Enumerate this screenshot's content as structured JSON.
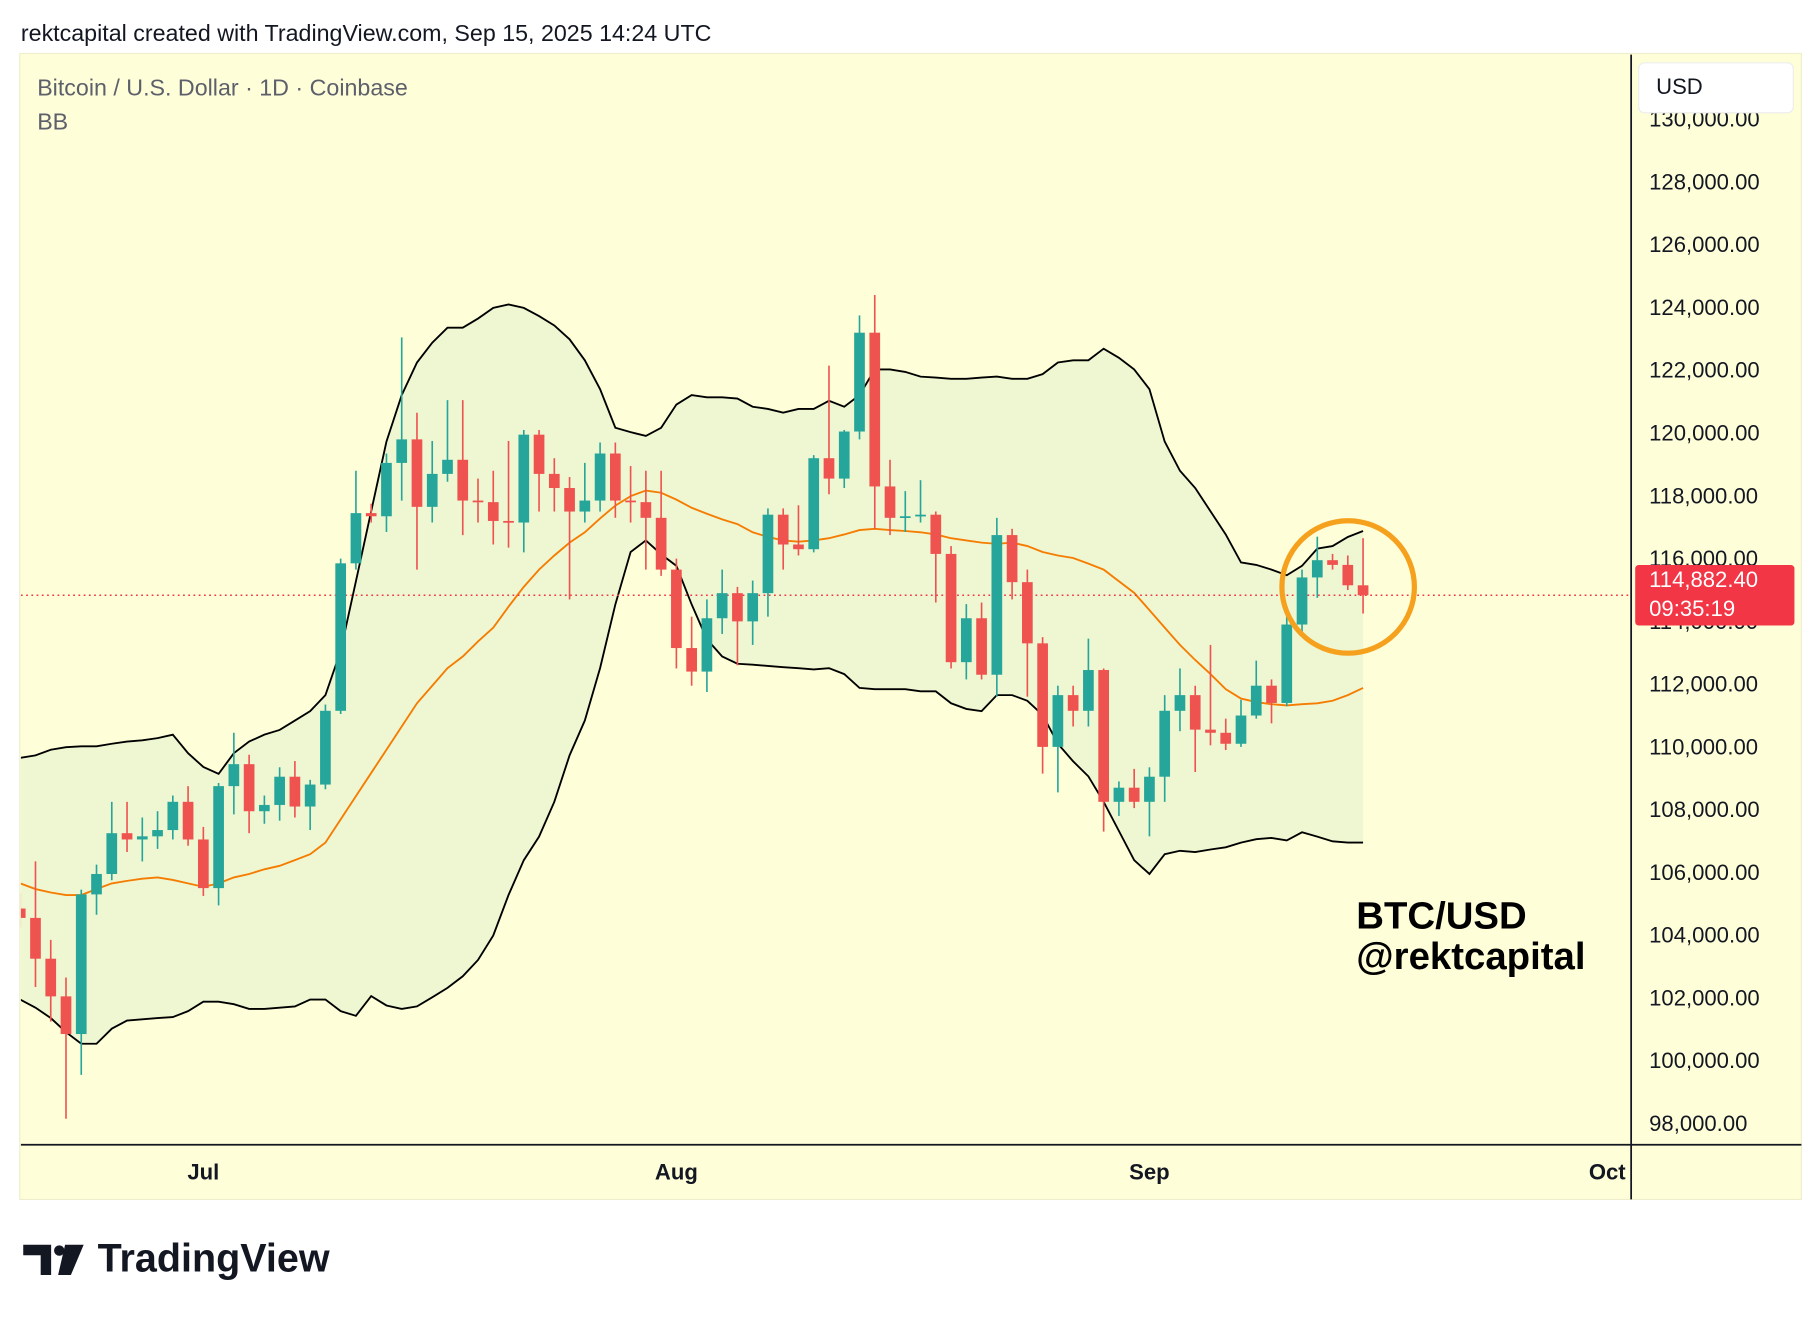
{
  "header": "rektcapital created with TradingView.com, Sep 15, 2025 14:24 UTC",
  "brand": "TradingView",
  "chart_data": {
    "type": "candlestick",
    "title": "Bitcoin / U.S. Dollar · 1D · Coinbase",
    "indicator": "BB",
    "currency": "USD",
    "annotations": [
      "BTC/USD",
      "@rektcapital"
    ],
    "categories": [
      null,
      null,
      null,
      null,
      null,
      null,
      null,
      null,
      null,
      null,
      null,
      null,
      "Jul",
      null,
      null,
      null,
      null,
      null,
      null,
      null,
      null,
      null,
      null,
      null,
      null,
      null,
      null,
      null,
      null,
      null,
      null,
      null,
      null,
      null,
      null,
      null,
      null,
      null,
      null,
      null,
      null,
      null,
      null,
      "Aug",
      null,
      null,
      null,
      null,
      null,
      null,
      null,
      null,
      null,
      null,
      null,
      null,
      null,
      null,
      null,
      null,
      null,
      null,
      null,
      null,
      null,
      null,
      null,
      null,
      null,
      null,
      null,
      null,
      null,
      null,
      "Sep",
      null,
      null,
      null,
      null,
      null,
      null,
      null,
      null,
      null,
      null,
      null,
      null,
      null,
      null,
      null,
      null,
      null,
      null,
      null,
      null,
      null,
      null,
      null,
      null,
      null,
      null,
      null,
      null,
      null,
      "Oct",
      null
    ],
    "open": [
      104900,
      104600,
      103300,
      102100,
      100900,
      105350,
      106000,
      107300,
      107100,
      107200,
      107400,
      108300,
      107100,
      105550,
      108800,
      109500,
      108000,
      108200,
      109100,
      108150,
      108850,
      111200,
      115900,
      117500,
      117400,
      119100,
      119850,
      117700,
      118750,
      119200,
      117900,
      117850,
      117250,
      117200,
      120000,
      118750,
      118300,
      117550,
      117900,
      119400,
      117900,
      117850,
      117350,
      115700,
      113200,
      112450,
      114150,
      114950,
      114050,
      114950,
      117450,
      116500,
      116350,
      119250,
      118600,
      120100,
      123250,
      118350,
      117350,
      117400,
      117450,
      116200,
      112750,
      114150,
      112350,
      116800,
      115300,
      113350,
      110050,
      111700,
      111200,
      112500,
      108300,
      108750,
      108300,
      109100,
      111200,
      111700,
      110600,
      110500,
      110150,
      111050,
      112000,
      111450,
      113950,
      115450,
      116000,
      115850,
      115200,
      null,
      null,
      null,
      null,
      null,
      null,
      null,
      null,
      null,
      null,
      null,
      null,
      null,
      null,
      null,
      null,
      null
    ],
    "high": [
      105400,
      106400,
      103900,
      102700,
      105500,
      106300,
      108300,
      108300,
      107800,
      108000,
      108500,
      108800,
      107500,
      108900,
      110500,
      109800,
      108500,
      109400,
      109600,
      109000,
      111400,
      116050,
      118850,
      117800,
      119400,
      123100,
      120700,
      119800,
      121100,
      121100,
      118600,
      118850,
      119800,
      120150,
      120150,
      119250,
      118650,
      119100,
      119750,
      119750,
      119000,
      118850,
      118850,
      116050,
      114200,
      114750,
      115700,
      115150,
      115350,
      117650,
      117650,
      117750,
      119350,
      122200,
      120150,
      123800,
      124450,
      119200,
      118200,
      118550,
      117550,
      116450,
      114600,
      114650,
      117350,
      117000,
      115700,
      113550,
      112000,
      112000,
      113500,
      112550,
      108950,
      109350,
      109400,
      111700,
      112550,
      112000,
      113300,
      110950,
      111550,
      112800,
      112200,
      114300,
      115700,
      116750,
      116200,
      116150,
      116700,
      null,
      null,
      null,
      null,
      null,
      null,
      null,
      null,
      null,
      null,
      null,
      null,
      null,
      null,
      null,
      null,
      null
    ],
    "low": [
      104300,
      102400,
      101300,
      98200,
      99600,
      104700,
      105800,
      106700,
      106400,
      106800,
      107100,
      106900,
      105300,
      105000,
      107900,
      107300,
      107600,
      107700,
      107800,
      107400,
      108700,
      111100,
      115700,
      117200,
      116900,
      117900,
      115700,
      117200,
      118500,
      116800,
      117200,
      116500,
      116400,
      116250,
      117550,
      117550,
      114750,
      117200,
      117550,
      117350,
      117200,
      115700,
      115500,
      112550,
      112000,
      111800,
      113650,
      112650,
      113300,
      114200,
      115700,
      116150,
      116250,
      118100,
      118300,
      119850,
      117000,
      116800,
      116900,
      117200,
      114650,
      112550,
      112200,
      112200,
      111650,
      114750,
      111650,
      109200,
      108600,
      110700,
      110700,
      107350,
      107850,
      108100,
      107200,
      108300,
      110550,
      109250,
      110100,
      109950,
      110050,
      110950,
      110800,
      111350,
      113700,
      114800,
      115700,
      115050,
      114300,
      null,
      null,
      null,
      null,
      null,
      null,
      null,
      null,
      null,
      null,
      null,
      null,
      null,
      null,
      null,
      null,
      null
    ],
    "close": [
      104600,
      103300,
      102100,
      100900,
      105350,
      106000,
      107300,
      107100,
      107200,
      107400,
      108300,
      107100,
      105550,
      108800,
      109500,
      108000,
      108200,
      109100,
      108150,
      108850,
      111200,
      115900,
      117500,
      117400,
      119100,
      119850,
      117700,
      118750,
      119200,
      117900,
      117850,
      117250,
      117200,
      120000,
      118750,
      118300,
      117550,
      117900,
      119400,
      117900,
      117850,
      117350,
      115700,
      113200,
      112450,
      114150,
      114950,
      114050,
      114950,
      117450,
      116500,
      116350,
      119250,
      118600,
      120100,
      123250,
      118350,
      117350,
      117400,
      117450,
      116200,
      112750,
      114150,
      112350,
      116800,
      115300,
      113350,
      110050,
      111700,
      111200,
      112500,
      108300,
      108750,
      108300,
      109100,
      111200,
      111700,
      110600,
      110500,
      110150,
      111050,
      112000,
      111450,
      113950,
      115450,
      116000,
      115850,
      115200,
      114882.4,
      null,
      null,
      null,
      null,
      null,
      null,
      null,
      null,
      null,
      null,
      null,
      null,
      null,
      null,
      null,
      null,
      null
    ],
    "up_color": "#26a69a",
    "down_color": "#ef5350",
    "band_fill": "#eef6d2",
    "overlays": [
      {
        "color": "#000000",
        "values": [
          109700,
          109780,
          109960,
          110040,
          110070,
          110070,
          110150,
          110220,
          110260,
          110330,
          110440,
          109850,
          109410,
          109190,
          109850,
          110220,
          110440,
          110590,
          110890,
          111190,
          111700,
          113110,
          115330,
          117560,
          119780,
          121260,
          122300,
          122930,
          123410,
          123410,
          123700,
          124040,
          124150,
          124040,
          123780,
          123480,
          123040,
          122370,
          121450,
          120220,
          120080,
          119960,
          120220,
          120960,
          121260,
          121190,
          121190,
          121150,
          120890,
          120820,
          120700,
          120820,
          120820,
          121080,
          120890,
          121260,
          122080,
          122080,
          122000,
          121850,
          121820,
          121780,
          121780,
          121820,
          121850,
          121780,
          121780,
          121930,
          122300,
          122370,
          122370,
          122740,
          122450,
          122080,
          121450,
          119780,
          118850,
          118300,
          117560,
          116820,
          115930,
          115850,
          115700,
          115520,
          115820,
          116370,
          116450,
          116740,
          116930,
          null,
          null,
          null,
          null,
          null,
          null,
          null,
          null,
          null,
          null,
          null,
          null,
          null,
          null,
          null,
          null,
          null
        ]
      },
      {
        "color": "#f57c00",
        "values": [
          105700,
          105520,
          105410,
          105330,
          105330,
          105520,
          105700,
          105780,
          105850,
          105890,
          105810,
          105700,
          105590,
          105700,
          105890,
          106000,
          106150,
          106260,
          106440,
          106630,
          107000,
          107740,
          108480,
          109220,
          109960,
          110700,
          111440,
          112000,
          112560,
          112930,
          113410,
          113850,
          114520,
          115150,
          115700,
          116150,
          116560,
          116890,
          117330,
          117740,
          118040,
          118220,
          118150,
          117930,
          117670,
          117480,
          117300,
          117150,
          116890,
          116740,
          116630,
          116590,
          116630,
          116700,
          116820,
          116960,
          117000,
          116960,
          116930,
          116890,
          116820,
          116700,
          116630,
          116560,
          116520,
          116560,
          116450,
          116260,
          116150,
          116070,
          115890,
          115700,
          115330,
          114960,
          114410,
          113850,
          113300,
          112820,
          112370,
          111890,
          111590,
          111480,
          111410,
          111370,
          111410,
          111440,
          111520,
          111700,
          111930,
          null,
          null,
          null,
          null,
          null,
          null,
          null,
          null,
          null,
          null,
          null,
          null,
          null,
          null,
          null,
          null,
          null
        ]
      },
      {
        "color": "#000000",
        "values": [
          102000,
          101740,
          101410,
          100960,
          100590,
          100590,
          101070,
          101330,
          101370,
          101410,
          101440,
          101630,
          101930,
          101930,
          101850,
          101700,
          101700,
          101740,
          101780,
          102000,
          102000,
          101630,
          101480,
          102110,
          101810,
          101700,
          101780,
          102070,
          102370,
          102740,
          103260,
          104040,
          105330,
          106440,
          107190,
          108300,
          109780,
          110890,
          112560,
          114590,
          116260,
          116630,
          116190,
          115820,
          114590,
          113480,
          112930,
          112700,
          112670,
          112630,
          112590,
          112560,
          112520,
          112560,
          112370,
          111930,
          111890,
          111890,
          111890,
          111820,
          111820,
          111440,
          111260,
          111190,
          111700,
          111700,
          111520,
          111070,
          110150,
          109590,
          109110,
          108300,
          107370,
          106440,
          106000,
          106630,
          106740,
          106700,
          106780,
          106850,
          107000,
          107110,
          107150,
          107070,
          107330,
          107190,
          107040,
          107000,
          107000,
          null,
          null,
          null,
          null,
          null,
          null,
          null,
          null,
          null,
          null,
          null,
          null,
          null,
          null,
          null,
          null,
          null
        ]
      }
    ],
    "last_price": {
      "value": 114882.4,
      "label": "114,882.40"
    },
    "last_price_color": "#f23645",
    "countdown": "09:35:19",
    "ylim": [
      97370,
      132110
    ],
    "yticks": [
      {
        "value": 98000,
        "label": "98,000.00"
      },
      {
        "value": 100000,
        "label": "100,000.00"
      },
      {
        "value": 102000,
        "label": "102,000.00"
      },
      {
        "value": 104000,
        "label": "104,000.00"
      },
      {
        "value": 106000,
        "label": "106,000.00"
      },
      {
        "value": 108000,
        "label": "108,000.00"
      },
      {
        "value": 110000,
        "label": "110,000.00"
      },
      {
        "value": 112000,
        "label": "112,000.00"
      },
      {
        "value": 114000,
        "label": "114,000.00"
      },
      {
        "value": 116000,
        "label": "116,000.00"
      },
      {
        "value": 118000,
        "label": "118,000.00"
      },
      {
        "value": 120000,
        "label": "120,000.00"
      },
      {
        "value": 122000,
        "label": "122,000.00"
      },
      {
        "value": 124000,
        "label": "124,000.00"
      },
      {
        "value": 126000,
        "label": "126,000.00"
      },
      {
        "value": 128000,
        "label": "128,000.00"
      },
      {
        "value": 130000,
        "label": "130,000.00"
      }
    ],
    "grid": false
  }
}
